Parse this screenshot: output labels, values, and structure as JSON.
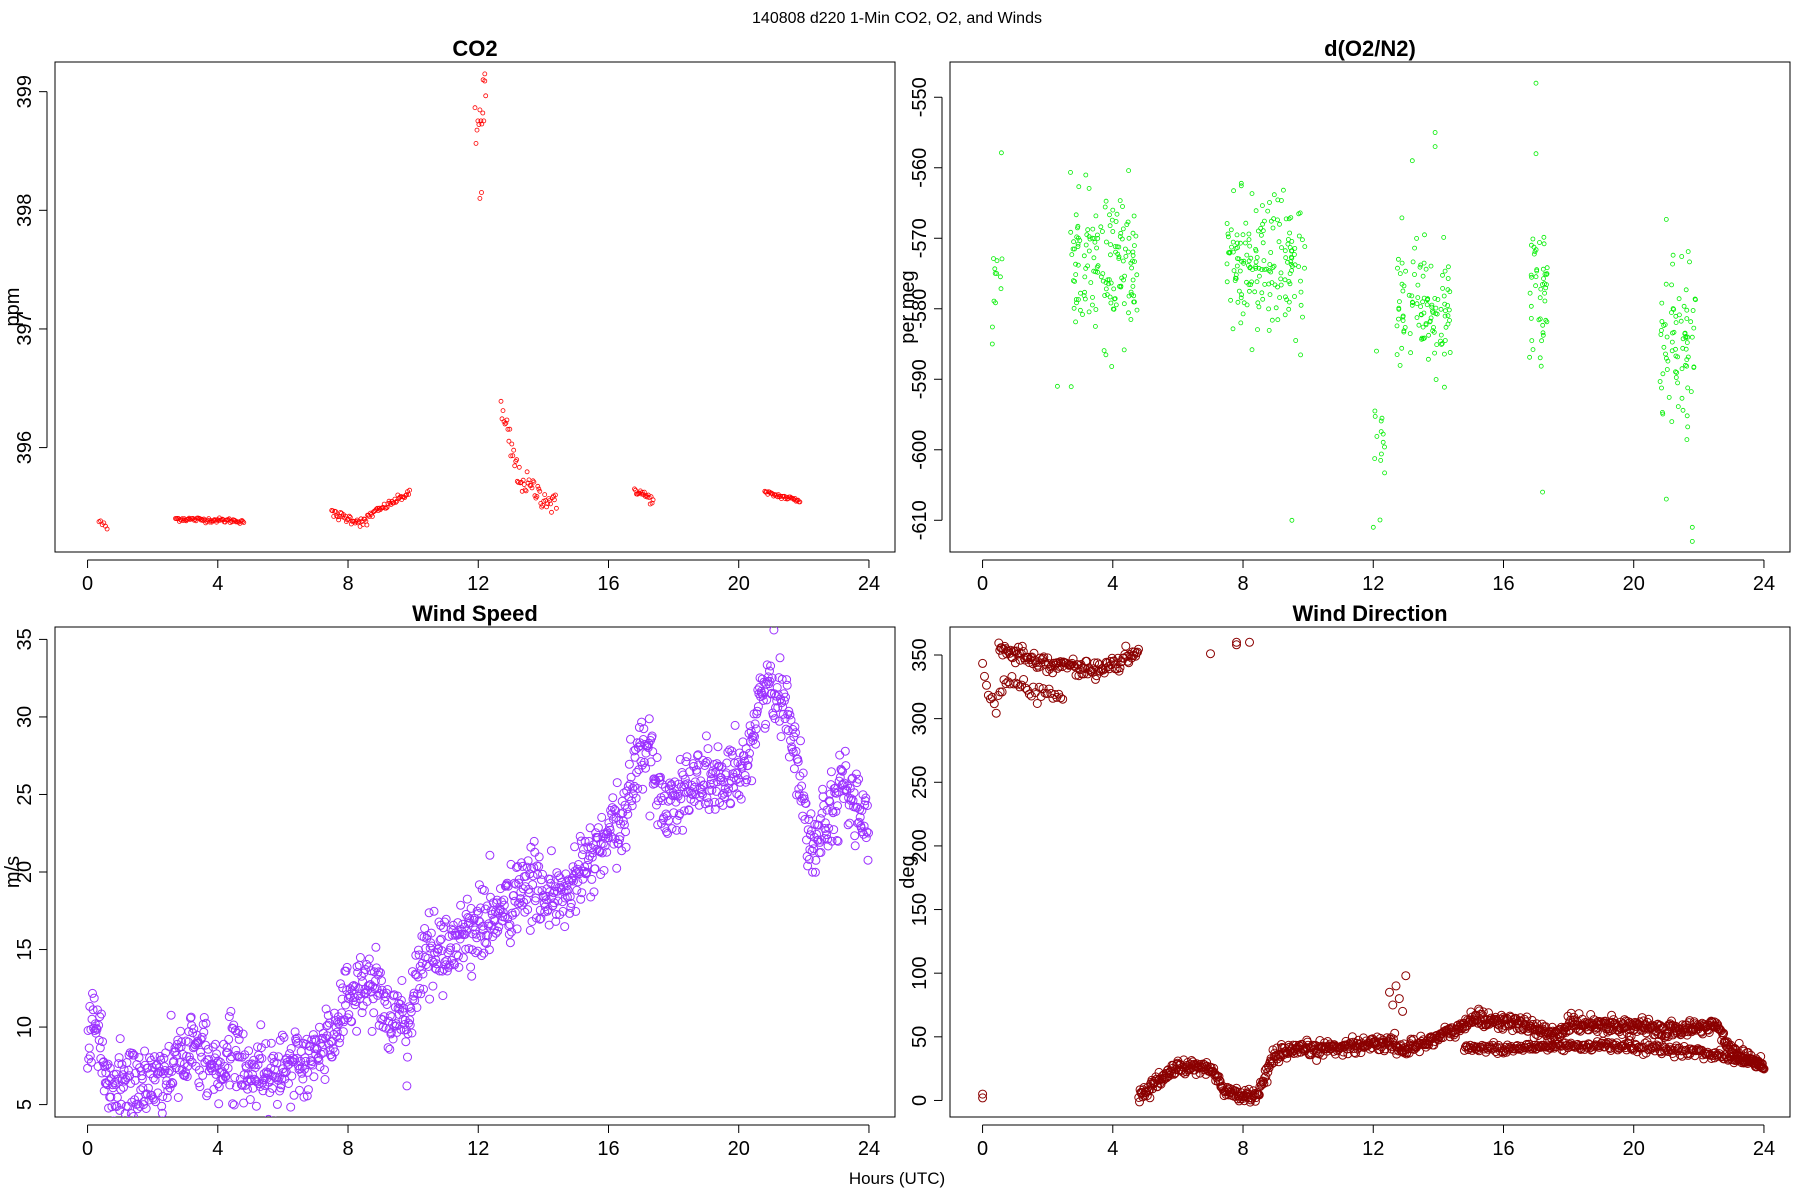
{
  "figure": {
    "title": "140808   d220   1-Min CO2, O2, and Winds",
    "xlabel": "Hours (UTC)"
  },
  "chart_data": [
    {
      "type": "scatter",
      "title": "CO2",
      "xlabel": "",
      "ylabel": "ppm",
      "xlim": [
        -1,
        24.8
      ],
      "ylim": [
        395.12,
        399.25
      ],
      "xticks": [
        0,
        4,
        8,
        12,
        16,
        20,
        24
      ],
      "yticks": [
        396,
        397,
        398,
        399
      ],
      "color": "#ff0000",
      "marker_radius": 2,
      "series": [
        {
          "segments": [
            {
              "x_start": 0.35,
              "x_end": 0.6,
              "y_start": 395.38,
              "y_end": 395.32,
              "amp": 0.03,
              "step": 0.05
            },
            {
              "x_start": 2.7,
              "x_end": 4.8,
              "y_start": 395.4,
              "y_end": 395.38,
              "amp": 0.02,
              "step": 0.03
            },
            {
              "x_start": 7.5,
              "x_end": 8.6,
              "y_start": 395.44,
              "y_end": 395.36,
              "amp": 0.04,
              "step": 0.03
            },
            {
              "x_start": 8.6,
              "x_end": 9.9,
              "y_start": 395.42,
              "y_end": 395.62,
              "amp": 0.03,
              "step": 0.03
            },
            {
              "x_start": 11.9,
              "x_end": 12.25,
              "y_start": 398.6,
              "y_end": 399.0,
              "amp": 0.25,
              "step": 0.03
            },
            {
              "x_start": 12.7,
              "x_end": 13.2,
              "y_start": 396.3,
              "y_end": 395.8,
              "amp": 0.15,
              "step": 0.03
            },
            {
              "x_start": 13.2,
              "x_end": 14.4,
              "y_start": 395.75,
              "y_end": 395.5,
              "amp": 0.1,
              "step": 0.03
            },
            {
              "x_start": 16.8,
              "x_end": 17.4,
              "y_start": 395.65,
              "y_end": 395.55,
              "amp": 0.04,
              "step": 0.03
            },
            {
              "x_start": 20.8,
              "x_end": 21.9,
              "y_start": 395.62,
              "y_end": 395.55,
              "amp": 0.02,
              "step": 0.03
            }
          ],
          "extra_points": [
            [
              12.05,
              398.1
            ],
            [
              12.1,
              398.15
            ],
            [
              12.2,
              399.15
            ],
            [
              12.15,
              399.1
            ]
          ]
        }
      ]
    },
    {
      "type": "scatter",
      "title": "d(O2/N2)",
      "xlabel": "",
      "ylabel": "per meg",
      "xlim": [
        -1,
        24.8
      ],
      "ylim": [
        -614.5,
        -545
      ],
      "xticks": [
        0,
        4,
        8,
        12,
        16,
        20,
        24
      ],
      "yticks": [
        -550,
        -560,
        -570,
        -580,
        -590,
        -600,
        -610
      ],
      "color": "#00ee00",
      "marker_radius": 2,
      "series": [
        {
          "clusters": [
            {
              "x_start": 0.3,
              "x_end": 0.6,
              "center": -574,
              "spread": 8,
              "count": 12
            },
            {
              "x_start": 2.7,
              "x_end": 4.8,
              "center": -574,
              "spread": 7,
              "count": 150
            },
            {
              "x_start": 7.5,
              "x_end": 9.9,
              "center": -574,
              "spread": 7,
              "count": 170
            },
            {
              "x_start": 12.0,
              "x_end": 12.35,
              "center": -600,
              "spread": 5,
              "count": 14
            },
            {
              "x_start": 12.7,
              "x_end": 14.4,
              "center": -580,
              "spread": 6,
              "count": 110
            },
            {
              "x_start": 16.8,
              "x_end": 17.4,
              "center": -578,
              "spread": 7,
              "count": 45
            },
            {
              "x_start": 20.8,
              "x_end": 21.9,
              "center": -585,
              "spread": 8,
              "count": 80
            }
          ],
          "extra_points": [
            [
              17.0,
              -548
            ],
            [
              17.0,
              -558
            ],
            [
              13.9,
              -555
            ],
            [
              13.9,
              -557
            ],
            [
              13.2,
              -559
            ],
            [
              9.5,
              -610
            ],
            [
              17.2,
              -606
            ],
            [
              21.0,
              -607
            ],
            [
              21.8,
              -613
            ],
            [
              21.8,
              -611
            ],
            [
              12.0,
              -611
            ],
            [
              12.1,
              -586
            ],
            [
              4.0,
              -566
            ],
            [
              0.3,
              -585
            ],
            [
              2.3,
              -591
            ]
          ]
        }
      ]
    },
    {
      "type": "scatter",
      "title": "Wind Speed",
      "xlabel": "",
      "ylabel": "m/s",
      "xlim": [
        -1,
        24.8
      ],
      "ylim": [
        4.2,
        35.8
      ],
      "xticks": [
        0,
        4,
        8,
        12,
        16,
        20,
        24
      ],
      "yticks": [
        5,
        10,
        15,
        20,
        25,
        30,
        35
      ],
      "color": "#9b30ff",
      "marker_radius": 4,
      "series": [
        {
          "trend": [
            [
              0.0,
              8.5
            ],
            [
              0.3,
              10.0
            ],
            [
              0.6,
              6.5
            ],
            [
              1.0,
              6.2
            ],
            [
              2.0,
              6.5
            ],
            [
              2.6,
              7.5
            ],
            [
              3.0,
              8.5
            ],
            [
              3.5,
              8.3
            ],
            [
              4.0,
              7.2
            ],
            [
              4.5,
              8.5
            ],
            [
              4.6,
              9.0
            ],
            [
              4.8,
              6.8
            ],
            [
              5.5,
              7.5
            ],
            [
              6.0,
              7.0
            ],
            [
              7.0,
              8.0
            ],
            [
              7.5,
              9.5
            ],
            [
              8.0,
              12.0
            ],
            [
              8.5,
              12.8
            ],
            [
              9.0,
              12.5
            ],
            [
              9.3,
              10.5
            ],
            [
              9.8,
              10.0
            ],
            [
              10.3,
              14.5
            ],
            [
              11.0,
              15.0
            ],
            [
              11.5,
              16.0
            ],
            [
              12.0,
              16.5
            ],
            [
              12.5,
              17.0
            ],
            [
              13.0,
              18.0
            ],
            [
              13.5,
              19.0
            ],
            [
              14.0,
              19.0
            ],
            [
              14.5,
              18.0
            ],
            [
              15.0,
              19.5
            ],
            [
              15.5,
              21.0
            ],
            [
              16.0,
              22.0
            ],
            [
              16.5,
              23.5
            ],
            [
              16.8,
              27.0
            ],
            [
              17.2,
              28.5
            ],
            [
              17.4,
              26.0
            ],
            [
              17.7,
              24.0
            ],
            [
              18.0,
              25.0
            ],
            [
              19.0,
              26.0
            ],
            [
              20.0,
              25.5
            ],
            [
              20.4,
              29.0
            ],
            [
              20.8,
              32.0
            ],
            [
              21.5,
              31.0
            ],
            [
              22.0,
              24.0
            ],
            [
              22.3,
              22.0
            ],
            [
              22.7,
              24.0
            ],
            [
              23.2,
              25.5
            ],
            [
              23.6,
              24.5
            ],
            [
              24.0,
              22.0
            ]
          ],
          "noise": 1.2,
          "step": 0.017
        }
      ]
    },
    {
      "type": "scatter",
      "title": "Wind Direction",
      "xlabel": "",
      "ylabel": "deg",
      "xlim": [
        -1,
        24.8
      ],
      "ylim": [
        -13,
        372
      ],
      "xticks": [
        0,
        4,
        8,
        12,
        16,
        20,
        24
      ],
      "yticks": [
        0,
        50,
        100,
        150,
        200,
        250,
        300,
        350
      ],
      "color": "#8b0000",
      "marker_radius": 4,
      "series": [
        {
          "trend_upper": [
            [
              0.5,
              355
            ],
            [
              1.0,
              352
            ],
            [
              1.5,
              348
            ],
            [
              2.0,
              343
            ],
            [
              2.5,
              342
            ],
            [
              3.0,
              340
            ],
            [
              3.5,
              338
            ],
            [
              4.0,
              342
            ],
            [
              4.5,
              348
            ],
            [
              4.8,
              352
            ]
          ],
          "trend_lower": [
            [
              0.0,
              340
            ],
            [
              0.2,
              320
            ],
            [
              0.4,
              305
            ],
            [
              0.6,
              325
            ],
            [
              1.0,
              330
            ],
            [
              1.5,
              322
            ],
            [
              2.0,
              320
            ],
            [
              2.5,
              318
            ]
          ],
          "trend_main": [
            [
              4.8,
              3
            ],
            [
              5.2,
              10
            ],
            [
              5.5,
              18
            ],
            [
              6.0,
              26
            ],
            [
              7.0,
              26
            ],
            [
              7.4,
              8
            ],
            [
              8.0,
              3
            ],
            [
              8.5,
              5
            ],
            [
              8.8,
              25
            ],
            [
              9.0,
              36
            ],
            [
              10.0,
              40
            ],
            [
              11.0,
              42
            ],
            [
              12.0,
              45
            ],
            [
              12.5,
              45
            ],
            [
              13.0,
              40
            ],
            [
              14.0,
              50
            ],
            [
              14.8,
              58
            ],
            [
              15.0,
              65
            ],
            [
              16.0,
              62
            ],
            [
              17.0,
              57
            ],
            [
              17.5,
              50
            ],
            [
              18.0,
              60
            ],
            [
              19.0,
              60
            ],
            [
              20.0,
              58
            ],
            [
              21.0,
              55
            ],
            [
              22.0,
              57
            ],
            [
              22.5,
              60
            ],
            [
              23.0,
              40
            ],
            [
              24.0,
              28
            ]
          ],
          "trend_secondary": [
            [
              14.8,
              42
            ],
            [
              16.0,
              40
            ],
            [
              17.0,
              42
            ],
            [
              18.0,
              43
            ],
            [
              19.0,
              43
            ],
            [
              20.0,
              42
            ],
            [
              21.0,
              40
            ],
            [
              22.0,
              38
            ],
            [
              22.5,
              36
            ],
            [
              23.0,
              33
            ],
            [
              24.0,
              28
            ]
          ],
          "extra_points": [
            [
              0.0,
              5
            ],
            [
              0.0,
              2
            ],
            [
              7.0,
              351
            ],
            [
              7.8,
              360
            ],
            [
              8.2,
              360
            ],
            [
              7.8,
              358
            ],
            [
              12.5,
              85
            ],
            [
              12.8,
              80
            ],
            [
              13.0,
              98
            ],
            [
              12.6,
              75
            ],
            [
              12.9,
              70
            ],
            [
              12.7,
              90
            ]
          ]
        }
      ]
    }
  ]
}
